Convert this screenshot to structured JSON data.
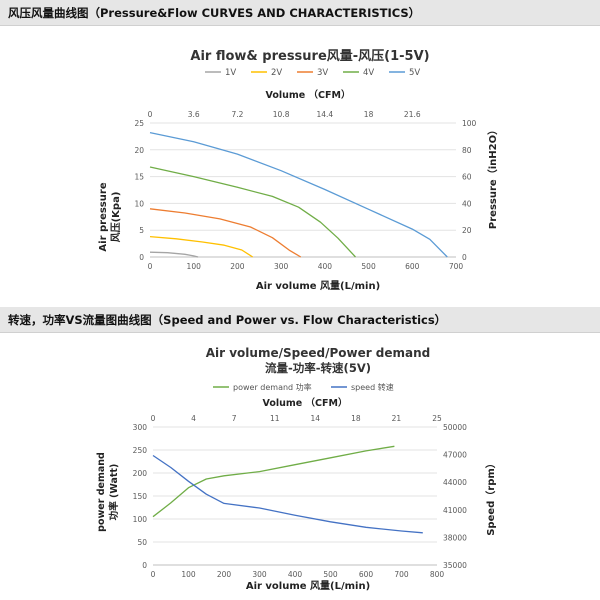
{
  "sections": [
    {
      "header": "风压风量曲线图（Pressure&Flow CURVES AND CHARACTERISTICS）"
    },
    {
      "header": "转速，功率VS流量图曲线图（Speed and Power vs. Flow Characteristics）"
    }
  ],
  "chart_data": [
    {
      "type": "line",
      "title": "Air flow& pressure风量-风压(1-5V)",
      "xlabel": "Air volume 风量(L/min)",
      "ylabel": [
        "Air pressure",
        "风压(Kpa)"
      ],
      "x2label": "Volume （CFM）",
      "y2label": "Pressure（inH2O）",
      "xlim": [
        0,
        700
      ],
      "ylim": [
        0,
        25
      ],
      "x_ticks": [
        "0",
        "100",
        "200",
        "300",
        "400",
        "500",
        "600",
        "700"
      ],
      "y_ticks": [
        "0",
        "5",
        "10",
        "15",
        "20",
        "25"
      ],
      "x2_ticks": [
        "0",
        "3.6",
        "7.2",
        "10.8",
        "14.4",
        "18",
        "21.6"
      ],
      "y2_ticks": [
        "0",
        "20",
        "40",
        "60",
        "80",
        "100"
      ],
      "legend_position": "top",
      "grid": "horizontal",
      "series": [
        {
          "name": "1V",
          "color": "#a5a5a5",
          "points": [
            [
              0,
              0.9
            ],
            [
              40,
              0.8
            ],
            [
              80,
              0.5
            ],
            [
              100,
              0.2
            ],
            [
              110,
              0
            ]
          ]
        },
        {
          "name": "2V",
          "color": "#ffc000",
          "points": [
            [
              0,
              3.8
            ],
            [
              60,
              3.4
            ],
            [
              120,
              2.8
            ],
            [
              170,
              2.2
            ],
            [
              210,
              1.3
            ],
            [
              235,
              0
            ]
          ]
        },
        {
          "name": "3V",
          "color": "#ed7d31",
          "points": [
            [
              0,
              9.0
            ],
            [
              80,
              8.2
            ],
            [
              160,
              7.1
            ],
            [
              230,
              5.6
            ],
            [
              280,
              3.6
            ],
            [
              320,
              1.2
            ],
            [
              345,
              0
            ]
          ]
        },
        {
          "name": "4V",
          "color": "#70ad47",
          "points": [
            [
              0,
              16.8
            ],
            [
              100,
              15.0
            ],
            [
              200,
              13.0
            ],
            [
              280,
              11.3
            ],
            [
              340,
              9.3
            ],
            [
              390,
              6.5
            ],
            [
              430,
              3.5
            ],
            [
              470,
              0
            ]
          ]
        },
        {
          "name": "5V",
          "color": "#5b9bd5",
          "points": [
            [
              0,
              23.2
            ],
            [
              100,
              21.5
            ],
            [
              200,
              19.2
            ],
            [
              300,
              16.1
            ],
            [
              400,
              12.6
            ],
            [
              500,
              8.9
            ],
            [
              600,
              5.2
            ],
            [
              640,
              3.3
            ],
            [
              680,
              0
            ]
          ]
        }
      ]
    },
    {
      "type": "line",
      "title": "Air volume/Speed/Power demand",
      "subtitle": "流量-功率-转速(5V)",
      "xlabel": "Air volume 风量(L/min)",
      "ylabel": [
        "power demand",
        "功率 (Watt)"
      ],
      "x2label": "Volume （CFM）",
      "y2label": "Speed（rpm）",
      "xlim": [
        0,
        800
      ],
      "ylim": [
        0,
        300
      ],
      "y2lim": [
        35000,
        50000
      ],
      "x_ticks": [
        "0",
        "100",
        "200",
        "300",
        "400",
        "500",
        "600",
        "700",
        "800"
      ],
      "y_ticks": [
        "0",
        "50",
        "100",
        "150",
        "200",
        "250",
        "300"
      ],
      "x2_ticks": [
        "0",
        "4",
        "7",
        "11",
        "14",
        "18",
        "21",
        "25"
      ],
      "y2_ticks": [
        "35000",
        "38000",
        "41000",
        "44000",
        "47000",
        "50000"
      ],
      "legend_position": "top",
      "grid": "horizontal",
      "series": [
        {
          "name": "power demand 功率",
          "color": "#70ad47",
          "axis": "left",
          "points": [
            [
              0,
              105
            ],
            [
              50,
              135
            ],
            [
              100,
              168
            ],
            [
              150,
              187
            ],
            [
              200,
              194
            ],
            [
              300,
              203
            ],
            [
              400,
              218
            ],
            [
              500,
              233
            ],
            [
              600,
              248
            ],
            [
              680,
              258
            ]
          ]
        },
        {
          "name": "speed 转速",
          "color": "#4472c4",
          "axis": "right",
          "points": [
            [
              0,
              46900
            ],
            [
              50,
              45600
            ],
            [
              100,
              44100
            ],
            [
              150,
              42700
            ],
            [
              200,
              41700
            ],
            [
              300,
              41200
            ],
            [
              400,
              40400
            ],
            [
              500,
              39700
            ],
            [
              600,
              39100
            ],
            [
              700,
              38700
            ],
            [
              760,
              38500
            ]
          ]
        }
      ]
    }
  ]
}
